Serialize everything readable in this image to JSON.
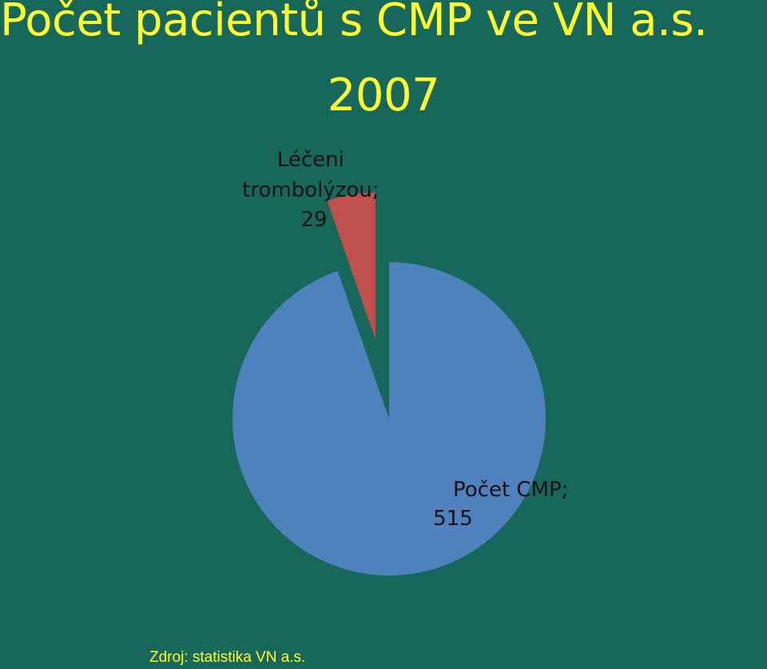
{
  "slide": {
    "title_line1": "Počet pacientů s CMP ve VN a.s.",
    "title_line2": "2007",
    "source": "Zdroj: statistika VN a.s."
  },
  "colors": {
    "background": "#17675a",
    "title": "#ffff2e",
    "slice_cmp": "#4f81bd",
    "slice_thrombolysis": "#c0504d"
  },
  "chart_data": {
    "type": "pie",
    "exploded": true,
    "categories": [
      "Počet CMP",
      "Léčeni trombolýzou"
    ],
    "values": [
      515,
      29
    ],
    "labels": [
      {
        "line1": "Počet CMP;",
        "line2": "515"
      },
      {
        "line1": "Léčeni",
        "line2": "trombolýzou;",
        "line3": "29"
      }
    ]
  }
}
